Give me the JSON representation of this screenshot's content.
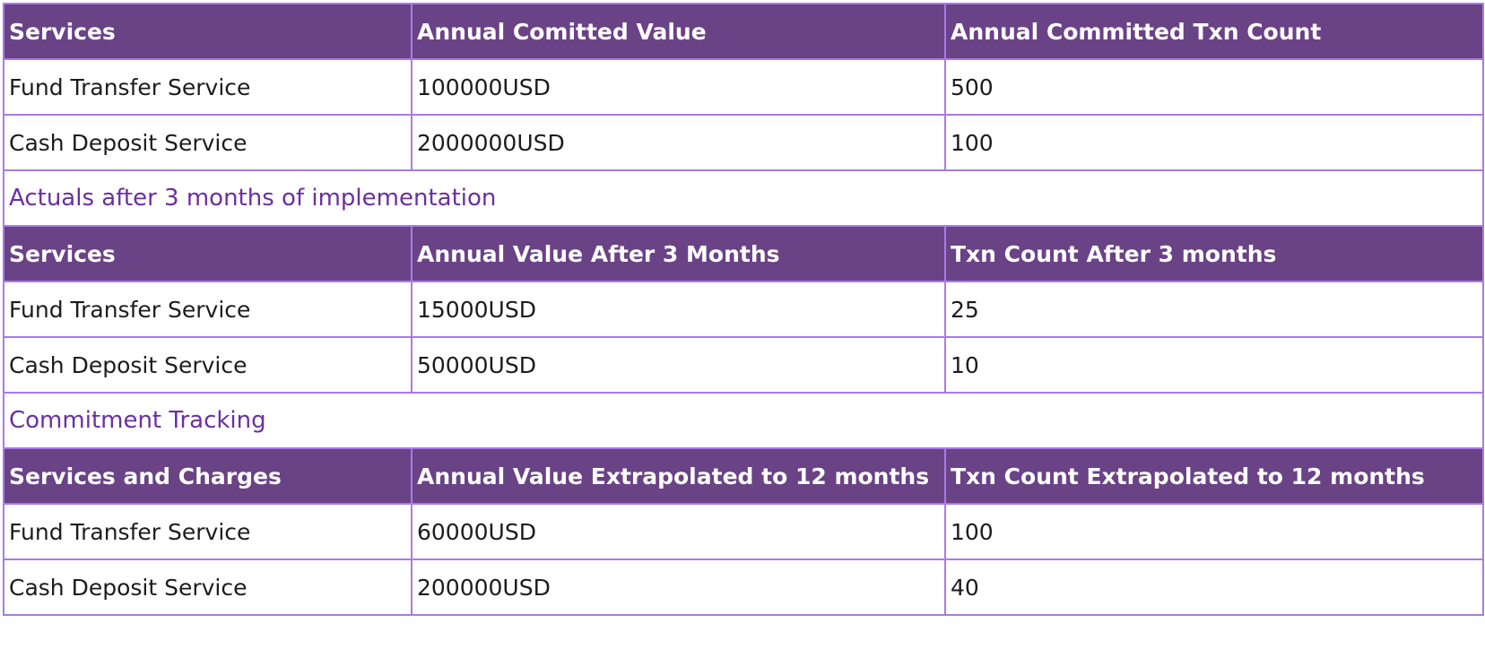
{
  "tables": [
    {
      "header": [
        "Services",
        "Annual Comitted Value",
        "Annual Committed Txn Count"
      ],
      "rows": [
        [
          "Fund Transfer Service",
          "100000USD",
          "500"
        ],
        [
          "Cash Deposit Service",
          "2000000USD",
          "100"
        ]
      ]
    },
    {
      "section_title": "Actuals after 3 months of implementation",
      "header": [
        "Services",
        "Annual Value After 3 Months",
        "Txn Count After 3 months"
      ],
      "rows": [
        [
          "Fund Transfer Service",
          "15000USD",
          "25"
        ],
        [
          "Cash Deposit Service",
          "50000USD",
          "10"
        ]
      ]
    },
    {
      "section_title": "Commitment Tracking",
      "header": [
        "Services and Charges",
        "Annual Value Extrapolated to 12 months",
        "Txn Count Extrapolated to 12 months"
      ],
      "rows": [
        [
          "Fund Transfer Service",
          "60000USD",
          "100"
        ],
        [
          "Cash Deposit Service",
          "200000USD",
          "40"
        ]
      ]
    }
  ],
  "colors": {
    "header_bg": "#6a4286",
    "border": "#a97be8",
    "section_text": "#6b2fa2"
  }
}
